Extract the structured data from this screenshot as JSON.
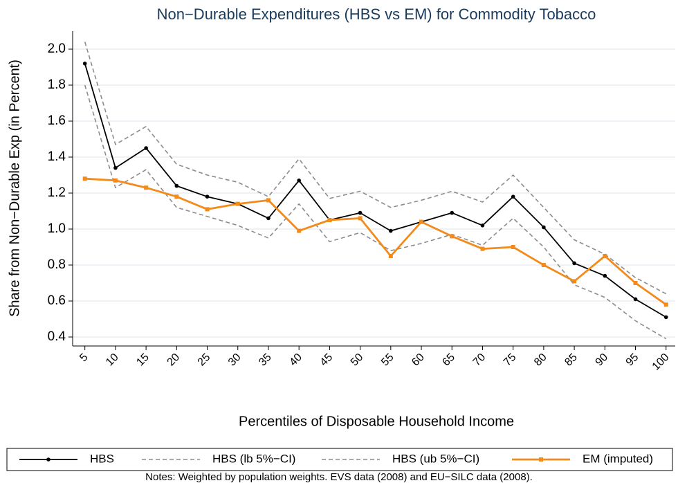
{
  "chart_data": {
    "type": "line",
    "title": "Non−Durable Expenditures (HBS vs EM) for Commodity Tobacco",
    "x_label": "Percentiles of Disposable Household Income",
    "y_label": "Share from Non−Durable Exp (in Percent)",
    "note": "Notes: Weighted by population weights. EVS data (2008) and EU−SILC data (2008).",
    "x": [
      5,
      10,
      15,
      20,
      25,
      30,
      35,
      40,
      45,
      50,
      55,
      60,
      65,
      70,
      75,
      80,
      85,
      90,
      95,
      100
    ],
    "xlim": [
      3,
      101.5
    ],
    "xticks": [
      5,
      10,
      15,
      20,
      25,
      30,
      35,
      40,
      45,
      50,
      55,
      60,
      65,
      70,
      75,
      80,
      85,
      90,
      95,
      100
    ],
    "ylim": [
      0.35,
      2.1
    ],
    "yticks": [
      0.4,
      0.6,
      0.8,
      {
        "value": 1,
        "label": "1.0"
      },
      1.2,
      1.4,
      1.6,
      1.8,
      {
        "value": 2,
        "label": "2.0"
      }
    ],
    "grid": true,
    "legend": "bottom",
    "series": [
      {
        "name": "HBS",
        "color": "#000000",
        "dash": false,
        "marker": "circle",
        "values": [
          1.92,
          1.34,
          1.45,
          1.24,
          1.18,
          1.14,
          1.06,
          1.27,
          1.05,
          1.09,
          0.99,
          1.04,
          1.09,
          1.02,
          1.18,
          1.01,
          0.81,
          0.74,
          0.61,
          0.51
        ]
      },
      {
        "name": "HBS (lb 5%−CI)",
        "color": "#8c8c8c",
        "dash": true,
        "marker": "none",
        "values": [
          1.8,
          1.23,
          1.33,
          1.12,
          1.07,
          1.02,
          0.95,
          1.14,
          0.93,
          0.98,
          0.88,
          0.92,
          0.97,
          0.91,
          1.06,
          0.9,
          0.69,
          0.62,
          0.49,
          0.39
        ]
      },
      {
        "name": "HBS (ub 5%−CI)",
        "color": "#8c8c8c",
        "dash": true,
        "marker": "none",
        "values": [
          2.04,
          1.47,
          1.57,
          1.36,
          1.3,
          1.26,
          1.18,
          1.39,
          1.17,
          1.21,
          1.12,
          1.16,
          1.21,
          1.15,
          1.3,
          1.12,
          0.94,
          0.86,
          0.73,
          0.64
        ]
      },
      {
        "name": "EM (imputed)",
        "color": "#f28b1b",
        "dash": false,
        "marker": "square",
        "values": [
          1.28,
          1.27,
          1.23,
          1.18,
          1.11,
          1.14,
          1.16,
          0.99,
          1.05,
          1.06,
          0.85,
          1.04,
          0.96,
          0.89,
          0.9,
          0.8,
          0.71,
          0.85,
          0.7,
          0.58
        ]
      }
    ]
  }
}
